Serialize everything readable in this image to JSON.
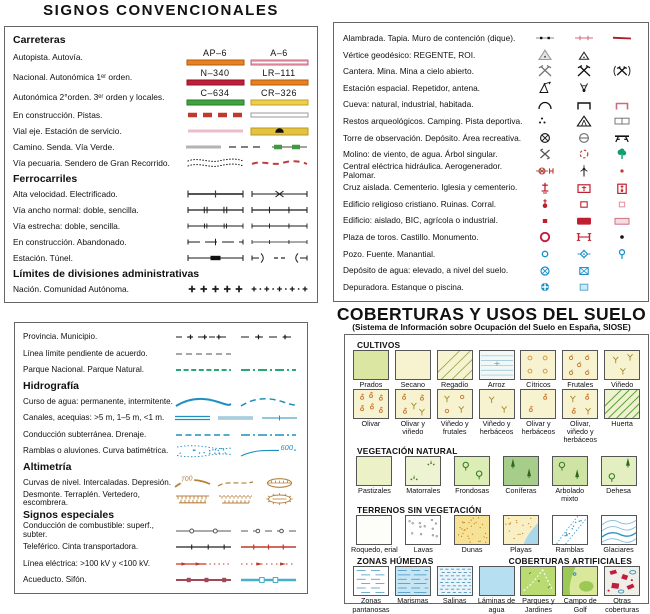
{
  "title": "SIGNOS CONVENCIONALES",
  "colors": {
    "motorway_orange": "#e8821e",
    "dual_pink": "#eda4b2",
    "national_red": "#c01f3c",
    "regional_green": "#3fa33f",
    "local_yellow": "#ecd04a",
    "symbol_red": "#c01f30",
    "water_blue": "#1f8fbf",
    "park_green": "#0a9a60",
    "contour_brown": "#b5803c",
    "tree_green": "#0d9f6e"
  },
  "left_top": {
    "rows": [
      {
        "type": "header",
        "label": "Carreteras"
      },
      {
        "tall": true,
        "label": "Autopista. Autovía.",
        "symbols": [
          {
            "icon": "road-motorway",
            "text": "AP–6"
          },
          {
            "icon": "road-dual",
            "text": "A–6"
          }
        ]
      },
      {
        "tall": true,
        "label": "Nacional. Autonómica 1ᵉʳ orden.",
        "symbols": [
          {
            "icon": "road-national",
            "text": "N–340"
          },
          {
            "icon": "road-regional1",
            "text": "LR–111"
          }
        ]
      },
      {
        "tall": true,
        "label": "Autonómica 2°orden. 3ᵉʳ orden y locales.",
        "symbols": [
          {
            "icon": "road-regional2",
            "text": "C–634"
          },
          {
            "icon": "road-local",
            "text": "CR–326"
          }
        ]
      },
      {
        "label": "En construcción. Pistas.",
        "symbols": [
          "road-construction",
          "road-track"
        ]
      },
      {
        "label": "Vial eje. Estación de servicio.",
        "symbols": [
          "road-axis",
          "service-station"
        ]
      },
      {
        "label": "Camino. Senda. Vía Verde.",
        "symbols": [
          "path-camino",
          "path-senda",
          "via-verde"
        ]
      },
      {
        "label": "Vía pecuaria. Sendero de Gran Recorrido.",
        "symbols": [
          "livestock-trail",
          "gr-trail"
        ]
      },
      {
        "type": "header",
        "label": "Ferrocarriles"
      },
      {
        "label": "Alta velocidad. Electrificado.",
        "symbols": [
          "rail-highspeed",
          "rail-electrified"
        ]
      },
      {
        "label": "Vía ancho normal: doble, sencilla.",
        "symbols": [
          "rail-double",
          "rail-single"
        ]
      },
      {
        "label": "Vía estrecha: doble, sencilla.",
        "symbols": [
          "rail-narrow-double",
          "rail-narrow-single"
        ]
      },
      {
        "label": "En construcción. Abandonado.",
        "symbols": [
          "rail-construction",
          "rail-abandoned"
        ]
      },
      {
        "label": "Estación. Túnel.",
        "symbols": [
          "rail-station",
          "rail-tunnel"
        ]
      },
      {
        "type": "header",
        "label": "Límites de divisiones administrativas"
      },
      {
        "label": "Nación. Comunidad Autónoma.",
        "symbols": [
          "boundary-nation",
          "boundary-region"
        ]
      }
    ]
  },
  "right_top": {
    "rows": [
      {
        "label": "Alambrada. Tapia. Muro de contención (dique).",
        "symbols": [
          "fence-wire",
          "wall-tapia",
          "dike-wall"
        ]
      },
      {
        "label": "Vértice geodésico: REGENTE, ROI.",
        "symbols": [
          "geodesic-regente",
          "geodesic-roi"
        ]
      },
      {
        "label": "Cantera. Mina. Mina a cielo abierto.",
        "symbols": [
          "quarry",
          "mine",
          "open-pit-mine"
        ]
      },
      {
        "label": "Estación espacial. Repetidor, antena.",
        "symbols": [
          "space-station",
          "antenna"
        ]
      },
      {
        "label": "Cueva: natural, industrial, habitada.",
        "symbols": [
          "cave-natural",
          "cave-industrial",
          "cave-inhabited"
        ]
      },
      {
        "label": "Restos arqueológicos. Camping. Pista deportiva.",
        "symbols": [
          "archaeological-site",
          "campsite",
          "sports-field"
        ]
      },
      {
        "label": "Torre de observación. Depósito. Área recreativa.",
        "symbols": [
          "observation-tower",
          "water-deposit",
          "recreation-area"
        ]
      },
      {
        "label": "Molino: de viento, de agua. Árbol singular.",
        "symbols": [
          "windmill",
          "watermill",
          "singular-tree"
        ]
      },
      {
        "label": "Central eléctrica hidráulica. Aerogenerador. Palomar.",
        "symbols": [
          "hydro-plant",
          "wind-turbine",
          "dovecote"
        ]
      },
      {
        "label": "Cruz aislada. Cementerio. Iglesia y cementerio.",
        "symbols": [
          "isolated-cross",
          "cemetery",
          "church-cemetery"
        ]
      },
      {
        "label": "Edificio religioso cristiano. Ruinas. Corral.",
        "symbols": [
          "christian-building",
          "ruins",
          "corral"
        ]
      },
      {
        "label": "Edificio: aislado, BIC, agrícola o industrial.",
        "symbols": [
          "building-isolated",
          "building-bic",
          "building-industrial"
        ]
      },
      {
        "label": "Plaza de toros. Castillo. Monumento.",
        "symbols": [
          "bullring",
          "castle",
          "monument"
        ]
      },
      {
        "label": "Pozo. Fuente. Manantial.",
        "symbols": [
          "well",
          "fountain",
          "spring"
        ]
      },
      {
        "label": "Depósito de agua: elevado, a nivel del suelo.",
        "symbols": [
          "water-tank-elevated",
          "water-tank-ground"
        ]
      },
      {
        "label": "Depuradora. Estanque o piscina.",
        "symbols": [
          "treatment-plant",
          "pond-pool"
        ]
      }
    ]
  },
  "left_bottom": {
    "rows": [
      {
        "label": "Provincia. Municipio.",
        "symbols": [
          "boundary-province",
          "boundary-municipality"
        ]
      },
      {
        "label": "Línea límite pendiente de acuerdo.",
        "symbols": [
          "boundary-pending"
        ]
      },
      {
        "label": "Parque Nacional. Parque Natural.",
        "symbols": [
          "park-national",
          "park-natural"
        ]
      },
      {
        "type": "header",
        "label": "Hidrografía"
      },
      {
        "label": "Curso de agua: permanente, intermitente.",
        "symbols": [
          "stream-permanent",
          "stream-intermittent"
        ]
      },
      {
        "label": "Canales, acequias: >5 m, 1–5 m, <1 m.",
        "symbols": [
          "canal-wide",
          "canal-medium",
          "canal-small"
        ]
      },
      {
        "label": "Conducción subterránea. Drenaje.",
        "symbols": [
          "pipe-underground-water",
          "drainage"
        ]
      },
      {
        "label": "Ramblas o aluviones. Curva batimétrica.",
        "symbols": [
          {
            "icon": "wash-alluvium"
          },
          {
            "icon": "bathymetric-curve",
            "text": "600"
          }
        ]
      },
      {
        "type": "header",
        "label": "Altimetría"
      },
      {
        "label": "Curvas de nivel. Intercaladas. Depresión.",
        "symbols": [
          {
            "icon": "contour-line",
            "text": "700"
          },
          {
            "icon": "contour-intermediate"
          },
          {
            "icon": "depression"
          }
        ]
      },
      {
        "label": "Desmonte. Terraplén. Vertedero, escombrera.",
        "symbols": [
          "cut-slope",
          "embankment",
          "spoil-heap"
        ]
      },
      {
        "type": "header",
        "label": "Signos especiales"
      },
      {
        "label": "Conducción de combustible: superf., subter.",
        "symbols": [
          "fuel-pipe-surface",
          "fuel-pipe-underground"
        ]
      },
      {
        "label": "Teleférico. Cinta transportadora.",
        "symbols": [
          "cable-car",
          "conveyor-belt"
        ]
      },
      {
        "label": "Línea eléctrica: >100 kV y <100 kV.",
        "symbols": [
          "power-line-high",
          "power-line-low"
        ]
      },
      {
        "label": "Acueducto. Sifón.",
        "symbols": [
          "aqueduct",
          "siphon"
        ]
      }
    ]
  },
  "coverage": {
    "title": "COBERTURAS Y USOS DEL SUELO",
    "subtitle": "(Sistema de Información sobre Ocupación del Suelo en España, SIOSE)",
    "sections": [
      {
        "headers": [
          "CULTIVOS"
        ],
        "rows": [
          [
            {
              "label": "Prados",
              "pattern": "prados"
            },
            {
              "label": "Secano",
              "pattern": "secano"
            },
            {
              "label": "Regadío",
              "pattern": "regadio"
            },
            {
              "label": "Arroz",
              "pattern": "arroz"
            },
            {
              "label": "Cítricos",
              "pattern": "citricos"
            },
            {
              "label": "Frutales",
              "pattern": "frutales"
            },
            {
              "label": "Viñedo",
              "pattern": "vinedo"
            }
          ],
          [
            {
              "label": "Olivar",
              "pattern": "olivar"
            },
            {
              "label": "Olivar y viñedo",
              "pattern": "olivar-vinedo"
            },
            {
              "label": "Viñedo y frutales",
              "pattern": "vinedo-frutales"
            },
            {
              "label": "Viñedo y herbáceos",
              "pattern": "vinedo-herbaceos"
            },
            {
              "label": "Olivar y herbáceos",
              "pattern": "olivar-herbaceos"
            },
            {
              "label": "Olivar, viñedo y herbáceos",
              "pattern": "olivar-vinedo-herbaceos"
            },
            {
              "label": "Huerta",
              "pattern": "huerta"
            }
          ]
        ]
      },
      {
        "headers": [
          "VEGETACIÓN NATURAL"
        ],
        "rows": [
          [
            {
              "label": "Pastizales",
              "pattern": "pastizales"
            },
            {
              "label": "Matorrales",
              "pattern": "matorrales"
            },
            {
              "label": "Frondosas",
              "pattern": "frondosas"
            },
            {
              "label": "Coníferas",
              "pattern": "coniferas"
            },
            {
              "label": "Arbolado mixto",
              "pattern": "arbolado-mixto"
            },
            {
              "label": "Dehesa",
              "pattern": "dehesa"
            }
          ]
        ]
      },
      {
        "headers": [
          "TERRENOS SIN VEGETACIÓN"
        ],
        "rows": [
          [
            {
              "label": "Roquedo, erial",
              "pattern": "roquedo-erial"
            },
            {
              "label": "Lavas",
              "pattern": "lavas"
            },
            {
              "label": "Dunas",
              "pattern": "dunas"
            },
            {
              "label": "Playas",
              "pattern": "playas"
            },
            {
              "label": "Ramblas",
              "pattern": "ramblas"
            },
            {
              "label": "Glaciares",
              "pattern": "glaciares"
            }
          ]
        ]
      },
      {
        "headers": [
          "ZONAS HÚMEDAS",
          "COBERTURAS ARTIFICIALES"
        ],
        "rows": [
          [
            {
              "label": "Zonas pantanosas",
              "pattern": "zonas-pantanosas"
            },
            {
              "label": "Marismas",
              "pattern": "marismas"
            },
            {
              "label": "Salinas",
              "pattern": "salinas"
            },
            {
              "label": "Láminas de agua",
              "pattern": "laminas-agua"
            },
            {
              "label": "Parques y Jardines",
              "pattern": "parques-jardines"
            },
            {
              "label": "Campo de Golf",
              "pattern": "campo-golf"
            },
            {
              "label": "Otras coberturas",
              "pattern": "otras-coberturas"
            }
          ]
        ]
      }
    ]
  }
}
